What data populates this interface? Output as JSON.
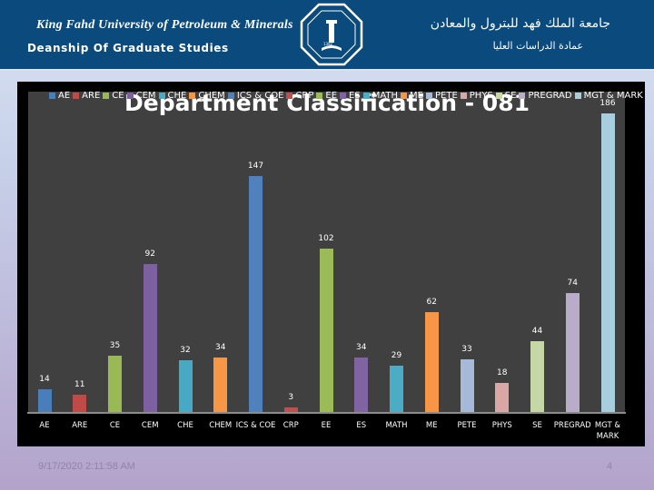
{
  "banner": {
    "university_en": "King Fahd University of Petroleum & Minerals",
    "deanship_en": "Deanship Of Graduate Studies",
    "university_ar": "جامعة الملك فهد للبترول والمعادن",
    "deanship_ar": "عمادة الدراسات العليا",
    "logo_icon": "kfupm-seal-icon",
    "logo_year": "1382"
  },
  "footer": {
    "date": "9/17/2020 2:11:58 AM",
    "page": "4"
  },
  "chart_data": {
    "type": "bar",
    "title": "Department Classification - 081",
    "xlabel": "",
    "ylabel": "",
    "ylim": [
      0,
      190
    ],
    "grid": false,
    "legend_position": "top",
    "categories": [
      "AE",
      "ARE",
      "CE",
      "CEM",
      "CHE",
      "CHEM",
      "ICS & COE",
      "CRP",
      "EE",
      "ES",
      "MATH",
      "ME",
      "PETE",
      "PHYS",
      "SE",
      "PREGRAD",
      "MGT & MARK"
    ],
    "values": [
      14,
      11,
      35,
      92,
      32,
      34,
      147,
      3,
      102,
      34,
      29,
      62,
      33,
      18,
      44,
      74,
      186
    ],
    "colors": [
      "#4a7ebb",
      "#be4b48",
      "#98b954",
      "#7d60a0",
      "#46aac4",
      "#f79646",
      "#4f81bd",
      "#c0504d",
      "#9bbb59",
      "#8064a2",
      "#4bacc6",
      "#f79646",
      "#a7b9d9",
      "#d9a7a6",
      "#c5d7a7",
      "#b9acc9",
      "#a8cedd"
    ]
  }
}
